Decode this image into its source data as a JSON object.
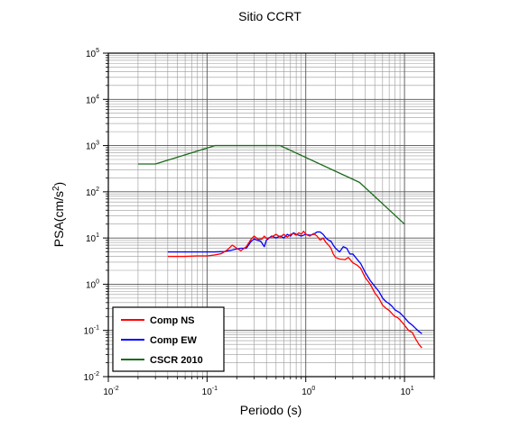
{
  "chart_data": {
    "type": "line",
    "title": "Sitio CCRT",
    "xlabel": "Periodo (s)",
    "ylabel": "PSA(cm/s²)",
    "xscale": "log",
    "yscale": "log",
    "xlim": [
      0.01,
      20
    ],
    "ylim": [
      0.01,
      100000
    ],
    "grid": true,
    "legend_position": "bottom-left",
    "x_tick_labels": [
      {
        "base": "10",
        "exp": "-2"
      },
      {
        "base": "10",
        "exp": "-1"
      },
      {
        "base": "10",
        "exp": "0"
      },
      {
        "base": "10",
        "exp": "1"
      }
    ],
    "y_tick_labels": [
      {
        "base": "10",
        "exp": "-2"
      },
      {
        "base": "10",
        "exp": "-1"
      },
      {
        "base": "10",
        "exp": "0"
      },
      {
        "base": "10",
        "exp": "1"
      },
      {
        "base": "10",
        "exp": "2"
      },
      {
        "base": "10",
        "exp": "3"
      },
      {
        "base": "10",
        "exp": "4"
      },
      {
        "base": "10",
        "exp": "5"
      }
    ],
    "series": [
      {
        "name": "Comp NS",
        "color": "#ff0000",
        "points": [
          [
            0.04,
            4.0
          ],
          [
            0.06,
            4.0
          ],
          [
            0.08,
            4.1
          ],
          [
            0.1,
            4.1
          ],
          [
            0.12,
            4.3
          ],
          [
            0.14,
            4.6
          ],
          [
            0.16,
            5.5
          ],
          [
            0.18,
            7.0
          ],
          [
            0.2,
            6.0
          ],
          [
            0.22,
            5.3
          ],
          [
            0.25,
            6.5
          ],
          [
            0.28,
            9.5
          ],
          [
            0.3,
            11.0
          ],
          [
            0.33,
            9.3
          ],
          [
            0.36,
            9.5
          ],
          [
            0.38,
            11.0
          ],
          [
            0.4,
            9.8
          ],
          [
            0.45,
            10.5
          ],
          [
            0.5,
            12.0
          ],
          [
            0.55,
            10.5
          ],
          [
            0.6,
            12.0
          ],
          [
            0.65,
            10.5
          ],
          [
            0.7,
            12.0
          ],
          [
            0.75,
            12.5
          ],
          [
            0.8,
            11.5
          ],
          [
            0.85,
            13.0
          ],
          [
            0.9,
            12.0
          ],
          [
            0.95,
            14.0
          ],
          [
            1.0,
            12.0
          ],
          [
            1.1,
            11.0
          ],
          [
            1.2,
            12.5
          ],
          [
            1.3,
            11.0
          ],
          [
            1.4,
            9.0
          ],
          [
            1.5,
            10.0
          ],
          [
            1.6,
            8.0
          ],
          [
            1.7,
            7.0
          ],
          [
            1.8,
            6.0
          ],
          [
            1.9,
            4.5
          ],
          [
            2.0,
            3.8
          ],
          [
            2.2,
            3.5
          ],
          [
            2.5,
            3.4
          ],
          [
            2.7,
            3.8
          ],
          [
            3.0,
            2.9
          ],
          [
            3.3,
            2.6
          ],
          [
            3.6,
            2.2
          ],
          [
            4.0,
            1.4
          ],
          [
            4.5,
            1.0
          ],
          [
            5.0,
            0.65
          ],
          [
            5.5,
            0.5
          ],
          [
            6.0,
            0.35
          ],
          [
            6.5,
            0.3
          ],
          [
            7.0,
            0.27
          ],
          [
            7.5,
            0.23
          ],
          [
            8.0,
            0.2
          ],
          [
            8.5,
            0.19
          ],
          [
            9.0,
            0.17
          ],
          [
            10.0,
            0.13
          ],
          [
            11.0,
            0.1
          ],
          [
            12.0,
            0.09
          ],
          [
            13.0,
            0.065
          ],
          [
            14.0,
            0.05
          ],
          [
            15.0,
            0.042
          ]
        ]
      },
      {
        "name": "Comp EW",
        "color": "#0000ff",
        "points": [
          [
            0.04,
            5.0
          ],
          [
            0.06,
            5.0
          ],
          [
            0.08,
            5.0
          ],
          [
            0.1,
            5.0
          ],
          [
            0.12,
            5.0
          ],
          [
            0.15,
            5.1
          ],
          [
            0.18,
            5.5
          ],
          [
            0.2,
            5.8
          ],
          [
            0.22,
            6.0
          ],
          [
            0.25,
            6.0
          ],
          [
            0.28,
            8.5
          ],
          [
            0.3,
            9.5
          ],
          [
            0.32,
            9.0
          ],
          [
            0.35,
            8.5
          ],
          [
            0.38,
            6.5
          ],
          [
            0.4,
            9.0
          ],
          [
            0.45,
            11.0
          ],
          [
            0.5,
            10.0
          ],
          [
            0.55,
            11.0
          ],
          [
            0.6,
            10.0
          ],
          [
            0.65,
            12.0
          ],
          [
            0.7,
            11.0
          ],
          [
            0.75,
            13.0
          ],
          [
            0.8,
            12.0
          ],
          [
            0.9,
            11.0
          ],
          [
            1.0,
            12.0
          ],
          [
            1.1,
            11.5
          ],
          [
            1.2,
            12.0
          ],
          [
            1.3,
            13.5
          ],
          [
            1.4,
            13.5
          ],
          [
            1.5,
            12.0
          ],
          [
            1.6,
            10.0
          ],
          [
            1.7,
            9.0
          ],
          [
            1.8,
            8.5
          ],
          [
            1.9,
            7.0
          ],
          [
            2.0,
            6.0
          ],
          [
            2.2,
            5.0
          ],
          [
            2.4,
            6.5
          ],
          [
            2.6,
            6.0
          ],
          [
            2.8,
            4.5
          ],
          [
            3.0,
            4.5
          ],
          [
            3.3,
            3.5
          ],
          [
            3.6,
            2.8
          ],
          [
            4.0,
            1.8
          ],
          [
            4.5,
            1.2
          ],
          [
            5.0,
            0.9
          ],
          [
            5.5,
            0.7
          ],
          [
            6.0,
            0.5
          ],
          [
            6.5,
            0.42
          ],
          [
            7.0,
            0.38
          ],
          [
            7.5,
            0.33
          ],
          [
            8.0,
            0.28
          ],
          [
            9.0,
            0.24
          ],
          [
            10.0,
            0.19
          ],
          [
            11.0,
            0.15
          ],
          [
            12.0,
            0.13
          ],
          [
            13.0,
            0.11
          ],
          [
            14.0,
            0.095
          ],
          [
            15.0,
            0.085
          ]
        ]
      },
      {
        "name": "CSCR 2010",
        "color": "#1a6b1a",
        "points": [
          [
            0.02,
            400
          ],
          [
            0.03,
            400
          ],
          [
            0.12,
            1000
          ],
          [
            0.55,
            1000
          ],
          [
            3.5,
            160
          ],
          [
            10.0,
            20
          ]
        ]
      }
    ]
  }
}
